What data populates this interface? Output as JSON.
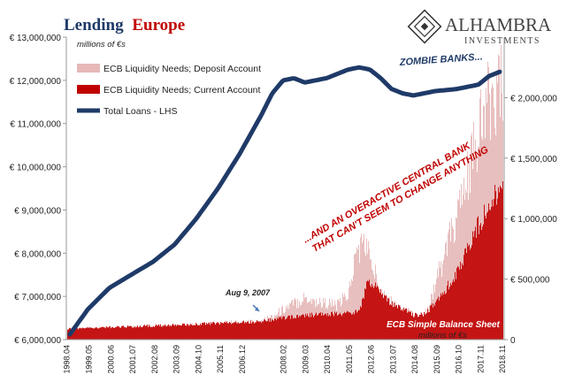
{
  "title": {
    "part1": "Lending",
    "part2": "Europe"
  },
  "brand": {
    "name": "ALHAMBRA",
    "sub": "INVESTMENTS"
  },
  "units": {
    "left": "millions of €s",
    "right": "millions of €s"
  },
  "legend": [
    {
      "label": "ECB Liquidity Needs; Deposit Account",
      "color": "#e6b8b8"
    },
    {
      "label": "ECB Liquidity Needs; Current Account",
      "color": "#c00000"
    },
    {
      "label": "Total Loans - LHS",
      "color": "#1f3a68"
    }
  ],
  "annotations": {
    "zombie": "ZOMBIE BANKS...",
    "central_bank_line1": "...AND AN OVERACTIVE CENTRAL BANK",
    "central_bank_line2": "THAT CAN'T SEEM TO CHANGE ANYTHING",
    "aug2007": "Aug 9, 2007",
    "ecb_sheet": "ECB Simple Balance Sheet"
  },
  "colors": {
    "title_dark": "#1f3a68",
    "title_red": "#c00000",
    "annotation_red": "#c00000",
    "annotation_blue": "#1f3a68",
    "deposit": "#e6b8b8",
    "current": "#c00000",
    "loans": "#1f3a68"
  },
  "chart_data": {
    "type": "area",
    "title": "Lending Europe",
    "x_start": "1998.01",
    "x_end": "2018.11",
    "x_ticks": [
      "1998.04",
      "1999.05",
      "2000.06",
      "2001.07",
      "2002.08",
      "2003.09",
      "2004.10",
      "2005.11",
      "2006.12",
      "2008.02",
      "2009.03",
      "2010.04",
      "2011.05",
      "2012.06",
      "2013.07",
      "2014.08",
      "2015.09",
      "2016.10",
      "2017.11",
      "2018.11"
    ],
    "y_left": {
      "label": "millions of €s",
      "lim": [
        6000000,
        13000000
      ],
      "ticks": [
        "€ 6,000,000",
        "€ 7,000,000",
        "€ 8,000,000",
        "€ 9,000,000",
        "€ 10,000,000",
        "€ 11,000,000",
        "€ 12,000,000",
        "€ 13,000,000"
      ]
    },
    "y_right": {
      "label": "millions of €s",
      "lim": [
        0,
        2500000
      ],
      "ticks": [
        "0",
        "€ 500,000",
        "€ 1,000,000",
        "€ 1,500,000",
        "€ 2,000,000"
      ]
    },
    "grid": false,
    "legend_position": "top-left",
    "series": [
      {
        "name": "Total Loans - LHS",
        "axis": "left",
        "type": "line",
        "x": [
          1998.0,
          1999.0,
          2000.0,
          2001.0,
          2002.0,
          2003.0,
          2004.0,
          2005.0,
          2006.0,
          2007.0,
          2007.5,
          2008.0,
          2008.5,
          2009.0,
          2010.0,
          2011.0,
          2011.5,
          2012.0,
          2012.5,
          2013.0,
          2013.5,
          2014.0,
          2014.5,
          2015.0,
          2016.0,
          2017.0,
          2017.5,
          2018.0,
          2018.9
        ],
        "y": [
          6000000,
          6700000,
          7200000,
          7500000,
          7800000,
          8200000,
          8800000,
          9500000,
          10300000,
          11200000,
          11700000,
          12000000,
          12050000,
          11950000,
          12050000,
          12250000,
          12300000,
          12250000,
          12050000,
          11800000,
          11700000,
          11650000,
          11700000,
          11750000,
          11800000,
          11900000,
          12100000,
          12200000,
          12300000
        ]
      },
      {
        "name": "ECB Liquidity Needs; Deposit Account",
        "axis": "right",
        "type": "area",
        "x": [
          1998.0,
          2003.0,
          2007.0,
          2007.6,
          2008.0,
          2008.5,
          2009.0,
          2009.5,
          2010.0,
          2010.5,
          2011.0,
          2011.4,
          2011.8,
          2012.0,
          2012.5,
          2013.0,
          2013.5,
          2014.0,
          2014.5,
          2015.0,
          2015.5,
          2016.0,
          2016.5,
          2017.0,
          2017.5,
          2018.0,
          2018.9
        ],
        "y": [
          80000,
          110000,
          150000,
          200000,
          250000,
          300000,
          350000,
          310000,
          300000,
          280000,
          380000,
          750000,
          800000,
          650000,
          400000,
          300000,
          250000,
          200000,
          200000,
          450000,
          750000,
          1000000,
          1350000,
          1700000,
          2000000,
          2070000,
          2050000
        ]
      },
      {
        "name": "ECB Liquidity Needs; Current Account",
        "axis": "right",
        "type": "area",
        "x": [
          1998.0,
          2003.0,
          2007.0,
          2008.0,
          2009.0,
          2010.0,
          2011.0,
          2011.5,
          2011.9,
          2012.3,
          2012.8,
          2013.5,
          2014.0,
          2014.5,
          2015.0,
          2015.5,
          2016.0,
          2016.5,
          2017.0,
          2017.5,
          2018.0,
          2018.9
        ],
        "y": [
          90000,
          120000,
          150000,
          180000,
          200000,
          210000,
          220000,
          240000,
          480000,
          450000,
          320000,
          250000,
          200000,
          210000,
          300000,
          420000,
          550000,
          750000,
          950000,
          1150000,
          1250000,
          1350000
        ]
      }
    ]
  }
}
